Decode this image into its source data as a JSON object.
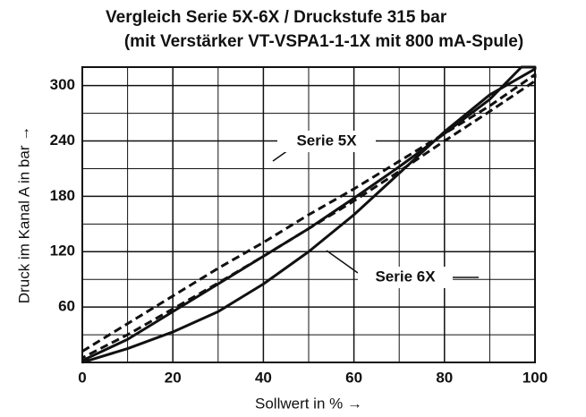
{
  "chart_data": {
    "type": "line",
    "title": [
      "Vergleich Serie 5X-6X / Druckstufe 315 bar",
      "(mit Verstärker VT-VSPA1-1-1X mit 800 mA-Spule)"
    ],
    "xlabel": "Sollwert in % →",
    "ylabel": "Druck im Kanal A in bar →",
    "xlim": [
      0,
      100
    ],
    "ylim": [
      0,
      320
    ],
    "xticks": [
      0,
      20,
      40,
      60,
      80,
      100
    ],
    "yticks": [
      60,
      120,
      180,
      240,
      300
    ],
    "xminorticks": [
      10,
      30,
      50,
      70,
      90
    ],
    "yminorticks": [
      30,
      90,
      150,
      210,
      270
    ],
    "grid": true,
    "annotations": [
      "Serie 5X",
      "Serie 6X"
    ],
    "series": [
      {
        "name": "Serie 5X",
        "color": "#111111",
        "style": "dashed",
        "x": [
          0,
          10,
          20,
          30,
          40,
          50,
          60,
          70,
          80,
          90,
          100,
          100,
          90,
          80,
          70,
          60,
          50,
          40,
          30,
          20,
          10,
          0
        ],
        "values": [
          12,
          42,
          72,
          102,
          130,
          160,
          188,
          218,
          248,
          278,
          312,
          305,
          272,
          240,
          207,
          175,
          145,
          115,
          86,
          58,
          30,
          5
        ]
      },
      {
        "name": "Serie 6X",
        "color": "#111111",
        "style": "solid",
        "x": [
          0,
          10,
          20,
          30,
          40,
          50,
          60,
          70,
          80,
          90,
          100,
          100,
          97,
          90,
          80,
          70,
          60,
          50,
          40,
          30,
          20,
          10,
          0
        ],
        "values": [
          0,
          15,
          33,
          55,
          85,
          120,
          160,
          205,
          250,
          290,
          318,
          320,
          320,
          285,
          248,
          212,
          178,
          145,
          115,
          85,
          55,
          25,
          2
        ]
      }
    ]
  }
}
